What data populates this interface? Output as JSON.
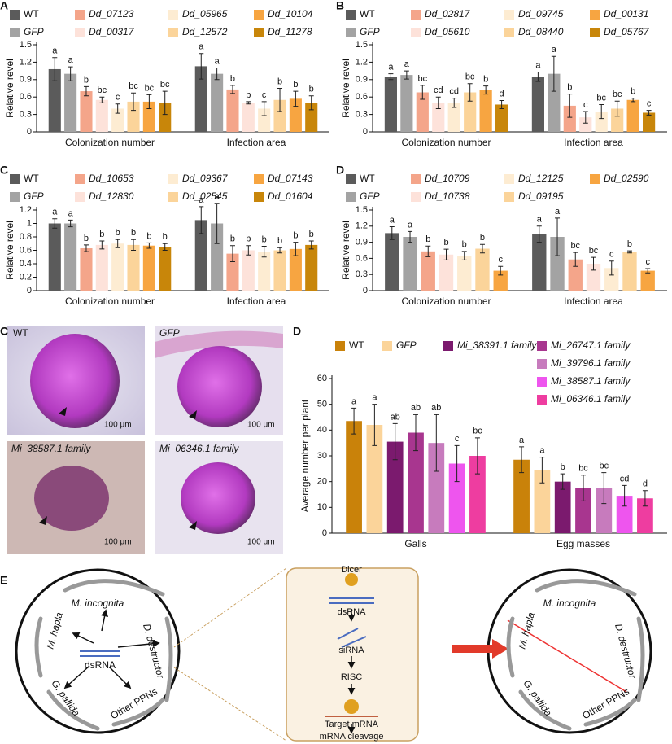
{
  "chart_data": [
    {
      "type": "bar",
      "panel": "A",
      "ylabel": "Relative revel",
      "categories": [
        "Colonization number",
        "Infection area"
      ],
      "ylim": [
        0,
        1.5
      ],
      "yticks": [
        0,
        0.3,
        0.6,
        0.9,
        1.2,
        1.5
      ],
      "series": [
        {
          "name": "WT",
          "color": "#5b5b5b",
          "values": [
            1.08,
            1.13
          ],
          "errors": [
            0.2,
            0.22
          ],
          "letters": [
            "a",
            "a"
          ]
        },
        {
          "name": "GFP",
          "color": "#a3a3a3",
          "values": [
            1.0,
            1.0
          ],
          "errors": [
            0.12,
            0.1
          ],
          "letters": [
            "a",
            "a"
          ]
        },
        {
          "name": "Dd_07123",
          "color": "#f4a58a",
          "values": [
            0.7,
            0.73
          ],
          "errors": [
            0.08,
            0.07
          ],
          "letters": [
            "b",
            "b"
          ]
        },
        {
          "name": "Dd_00317",
          "color": "#fde2da",
          "values": [
            0.55,
            0.5
          ],
          "errors": [
            0.05,
            0.02
          ],
          "letters": [
            "bc",
            "b"
          ]
        },
        {
          "name": "Dd_05965",
          "color": "#fdecd2",
          "values": [
            0.4,
            0.4
          ],
          "errors": [
            0.08,
            0.12
          ],
          "letters": [
            "c",
            "c"
          ]
        },
        {
          "name": "Dd_12572",
          "color": "#fbd49a",
          "values": [
            0.52,
            0.55
          ],
          "errors": [
            0.15,
            0.2
          ],
          "letters": [
            "bc",
            "b"
          ]
        },
        {
          "name": "Dd_10104",
          "color": "#f7a541",
          "values": [
            0.52,
            0.57
          ],
          "errors": [
            0.12,
            0.13
          ],
          "letters": [
            "bc",
            "b"
          ]
        },
        {
          "name": "Dd_11278",
          "color": "#c8860a",
          "values": [
            0.5,
            0.5
          ],
          "errors": [
            0.2,
            0.12
          ],
          "letters": [
            "bc",
            "b"
          ]
        }
      ]
    },
    {
      "type": "bar",
      "panel": "B",
      "ylabel": "Relative revel",
      "categories": [
        "Colonization number",
        "Infection area"
      ],
      "ylim": [
        0,
        1.5
      ],
      "yticks": [
        0,
        0.3,
        0.6,
        0.9,
        1.2,
        1.5
      ],
      "series": [
        {
          "name": "WT",
          "color": "#5b5b5b",
          "values": [
            0.95,
            0.95
          ],
          "errors": [
            0.05,
            0.08
          ],
          "letters": [
            "a",
            "a"
          ]
        },
        {
          "name": "GFP",
          "color": "#a3a3a3",
          "values": [
            0.98,
            1.0
          ],
          "errors": [
            0.07,
            0.3
          ],
          "letters": [
            "a",
            "a"
          ]
        },
        {
          "name": "Dd_02817",
          "color": "#f4a58a",
          "values": [
            0.68,
            0.45
          ],
          "errors": [
            0.12,
            0.2
          ],
          "letters": [
            "bc",
            "b"
          ]
        },
        {
          "name": "Dd_05610",
          "color": "#fde2da",
          "values": [
            0.5,
            0.25
          ],
          "errors": [
            0.1,
            0.1
          ],
          "letters": [
            "cd",
            "c"
          ]
        },
        {
          "name": "Dd_09745",
          "color": "#fdecd2",
          "values": [
            0.5,
            0.35
          ],
          "errors": [
            0.08,
            0.12
          ],
          "letters": [
            "cd",
            "bc"
          ]
        },
        {
          "name": "Dd_08440",
          "color": "#fbd49a",
          "values": [
            0.68,
            0.4
          ],
          "errors": [
            0.15,
            0.13
          ],
          "letters": [
            "bc",
            "bc"
          ]
        },
        {
          "name": "Dd_00131",
          "color": "#f7a541",
          "values": [
            0.72,
            0.55
          ],
          "errors": [
            0.07,
            0.03
          ],
          "letters": [
            "b",
            "b"
          ]
        },
        {
          "name": "Dd_05767",
          "color": "#c8860a",
          "values": [
            0.47,
            0.33
          ],
          "errors": [
            0.07,
            0.04
          ],
          "letters": [
            "d",
            "c"
          ]
        }
      ]
    },
    {
      "type": "bar",
      "panel": "C",
      "ylabel": "Relative revel",
      "categories": [
        "Colonization number",
        "Infection area"
      ],
      "ylim": [
        0,
        1.2
      ],
      "yticks": [
        0,
        0.2,
        0.4,
        0.6,
        0.8,
        1,
        1.2
      ],
      "series": [
        {
          "name": "WT",
          "color": "#5b5b5b",
          "values": [
            1.0,
            1.05
          ],
          "errors": [
            0.07,
            0.2
          ],
          "letters": [
            "a",
            "a"
          ]
        },
        {
          "name": "GFP",
          "color": "#a3a3a3",
          "values": [
            1.0,
            1.0
          ],
          "errors": [
            0.05,
            0.3
          ],
          "letters": [
            "a",
            "a"
          ]
        },
        {
          "name": "Dd_10653",
          "color": "#f4a58a",
          "values": [
            0.63,
            0.55
          ],
          "errors": [
            0.05,
            0.12
          ],
          "letters": [
            "b",
            "b"
          ]
        },
        {
          "name": "Dd_12830",
          "color": "#fde2da",
          "values": [
            0.68,
            0.6
          ],
          "errors": [
            0.06,
            0.07
          ],
          "letters": [
            "b",
            "b"
          ]
        },
        {
          "name": "Dd_09367",
          "color": "#fdecd2",
          "values": [
            0.7,
            0.58
          ],
          "errors": [
            0.06,
            0.08
          ],
          "letters": [
            "b",
            "b"
          ]
        },
        {
          "name": "Dd_02545",
          "color": "#fbd49a",
          "values": [
            0.68,
            0.6
          ],
          "errors": [
            0.08,
            0.04
          ],
          "letters": [
            "b",
            "b"
          ]
        },
        {
          "name": "Dd_07143",
          "color": "#f7a541",
          "values": [
            0.67,
            0.62
          ],
          "errors": [
            0.04,
            0.1
          ],
          "letters": [
            "b",
            "b"
          ]
        },
        {
          "name": "Dd_01604",
          "color": "#c8860a",
          "values": [
            0.65,
            0.68
          ],
          "errors": [
            0.05,
            0.06
          ],
          "letters": [
            "b",
            "b"
          ]
        }
      ]
    },
    {
      "type": "bar",
      "panel": "D",
      "ylabel": "Relative revel",
      "categories": [
        "Colonization number",
        "Infection area"
      ],
      "ylim": [
        0,
        1.5
      ],
      "yticks": [
        0,
        0.3,
        0.6,
        0.9,
        1.2,
        1.5
      ],
      "series": [
        {
          "name": "WT",
          "color": "#5b5b5b",
          "values": [
            1.07,
            1.05
          ],
          "errors": [
            0.12,
            0.15
          ],
          "letters": [
            "a",
            "a"
          ]
        },
        {
          "name": "GFP",
          "color": "#a3a3a3",
          "values": [
            1.0,
            1.0
          ],
          "errors": [
            0.1,
            0.35
          ],
          "letters": [
            "a",
            "a"
          ]
        },
        {
          "name": "Dd_10709",
          "color": "#f4a58a",
          "values": [
            0.73,
            0.58
          ],
          "errors": [
            0.1,
            0.13
          ],
          "letters": [
            "b",
            "bc"
          ]
        },
        {
          "name": "Dd_10738",
          "color": "#fde2da",
          "values": [
            0.67,
            0.5
          ],
          "errors": [
            0.1,
            0.12
          ],
          "letters": [
            "b",
            "bc"
          ]
        },
        {
          "name": "Dd_12125",
          "color": "#fdecd2",
          "values": [
            0.65,
            0.42
          ],
          "errors": [
            0.08,
            0.13
          ],
          "letters": [
            "b",
            "c"
          ]
        },
        {
          "name": "Dd_09195",
          "color": "#fbd49a",
          "values": [
            0.78,
            0.72
          ],
          "errors": [
            0.08,
            0.02
          ],
          "letters": [
            "b",
            "b"
          ]
        },
        {
          "name": "Dd_02590",
          "color": "#f7a541",
          "values": [
            0.37,
            0.37
          ],
          "errors": [
            0.08,
            0.04
          ],
          "letters": [
            "c",
            "c"
          ]
        }
      ]
    },
    {
      "type": "bar",
      "panel": "D",
      "ylabel": "Average number per plant",
      "categories": [
        "Galls",
        "Egg masses"
      ],
      "ylim": [
        0,
        60
      ],
      "yticks": [
        0,
        10,
        20,
        30,
        40,
        50,
        60
      ],
      "series": [
        {
          "name": "WT",
          "color": "#c9820a",
          "values": [
            43.5,
            28.5
          ],
          "errors": [
            5,
            5
          ],
          "letters": [
            "a",
            "a"
          ]
        },
        {
          "name": "GFP",
          "color": "#fbd49a",
          "values": [
            42,
            24.5
          ],
          "errors": [
            8,
            5
          ],
          "letters": [
            "a",
            "a"
          ]
        },
        {
          "name": "Mi_38391.1 family",
          "color": "#7b1a6e",
          "values": [
            35.5,
            20
          ],
          "errors": [
            7,
            3
          ],
          "letters": [
            "ab",
            "b"
          ]
        },
        {
          "name": "Mi_26747.1 family",
          "color": "#a8368f",
          "values": [
            39,
            17.5
          ],
          "errors": [
            7,
            5
          ],
          "letters": [
            "ab",
            "bc"
          ]
        },
        {
          "name": "Mi_39796.1 family",
          "color": "#c77bbd",
          "values": [
            35,
            17.5
          ],
          "errors": [
            11,
            6
          ],
          "letters": [
            "ab",
            "bc"
          ]
        },
        {
          "name": "Mi_38587.1 family",
          "color": "#ee55ee",
          "values": [
            27,
            14.5
          ],
          "errors": [
            7,
            4
          ],
          "letters": [
            "c",
            "cd"
          ]
        },
        {
          "name": "Mi_06346.1 family",
          "color": "#ee3da0",
          "values": [
            30,
            13.5
          ],
          "errors": [
            7,
            3
          ],
          "letters": [
            "bc",
            "d"
          ]
        }
      ]
    }
  ],
  "micrographs": {
    "panel": "C",
    "images": [
      {
        "label": "WT",
        "scale": "100 μm"
      },
      {
        "label": "GFP",
        "scale": "100 μm"
      },
      {
        "label": "Mi_38587.1 family",
        "scale": "100 μm"
      },
      {
        "label": "Mi_06346.1 family",
        "scale": "100 μm"
      }
    ]
  },
  "diagram": {
    "panel": "E",
    "left": {
      "species": [
        "M. incognita",
        "D. destructor",
        "M. hapla",
        "G. pallida",
        "Other PPNs"
      ],
      "center": "dsRNA"
    },
    "steps": [
      "Dicer",
      "dsRNA",
      "siRNA",
      "RISC",
      "Target mRNA",
      "mRNA cleavage"
    ],
    "right": {
      "species": [
        "M. incognita",
        "D. destructor",
        "M. hapla",
        "G. pallida",
        "Other PPNs"
      ]
    }
  }
}
